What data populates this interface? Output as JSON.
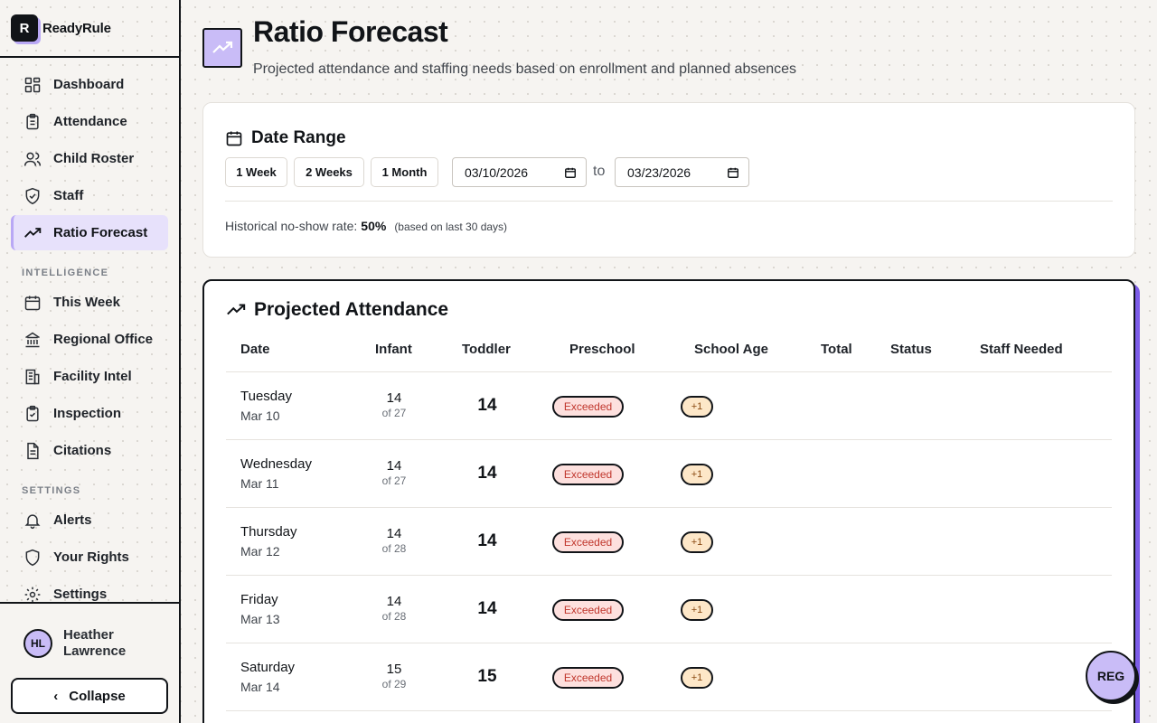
{
  "brand": {
    "logo_letter": "R",
    "name": "ReadyRule"
  },
  "sidebar": {
    "items": [
      {
        "label": "Dashboard",
        "icon": "dashboard-icon"
      },
      {
        "label": "Attendance",
        "icon": "clipboard-icon"
      },
      {
        "label": "Child Roster",
        "icon": "users-icon"
      },
      {
        "label": "Staff",
        "icon": "shield-check-icon"
      },
      {
        "label": "Ratio Forecast",
        "icon": "trending-up-icon",
        "active": true
      }
    ],
    "section_intelligence": "INTELLIGENCE",
    "intelligence_items": [
      {
        "label": "This Week",
        "icon": "calendar-icon"
      },
      {
        "label": "Regional Office",
        "icon": "building-columns-icon"
      },
      {
        "label": "Facility Intel",
        "icon": "building-icon"
      },
      {
        "label": "Inspection",
        "icon": "clipboard-check-icon"
      },
      {
        "label": "Citations",
        "icon": "file-text-icon"
      }
    ],
    "section_settings": "SETTINGS",
    "settings_items": [
      {
        "label": "Alerts",
        "icon": "bell-icon"
      },
      {
        "label": "Your Rights",
        "icon": "shield-icon"
      },
      {
        "label": "Settings",
        "icon": "gear-icon"
      }
    ],
    "user": {
      "initials": "HL",
      "name": "Heather Lawrence"
    },
    "collapse_label": "Collapse"
  },
  "header": {
    "title": "Ratio Forecast",
    "subtitle": "Projected attendance and staffing needs based on enrollment and planned absences"
  },
  "date_range": {
    "title": "Date Range",
    "presets": [
      "1 Week",
      "2 Weeks",
      "1 Month"
    ],
    "start": "03/10/2026",
    "to_label": "to",
    "end": "03/23/2026",
    "noshow_label": "Historical no-show rate:",
    "noshow_value": "50%",
    "noshow_note": "(based on last 30 days)"
  },
  "attendance": {
    "title": "Projected Attendance",
    "columns": [
      "Date",
      "Infant",
      "Toddler",
      "Preschool",
      "School Age",
      "Total",
      "Status",
      "Staff Needed"
    ],
    "rows": [
      {
        "day": "Tuesday",
        "date": "Mar 10",
        "infant": "14",
        "infant_of": "of 27",
        "toddler": "14",
        "preschool_badge": "Exceeded",
        "school_age_badge": "+1"
      },
      {
        "day": "Wednesday",
        "date": "Mar 11",
        "infant": "14",
        "infant_of": "of 27",
        "toddler": "14",
        "preschool_badge": "Exceeded",
        "school_age_badge": "+1"
      },
      {
        "day": "Thursday",
        "date": "Mar 12",
        "infant": "14",
        "infant_of": "of 28",
        "toddler": "14",
        "preschool_badge": "Exceeded",
        "school_age_badge": "+1"
      },
      {
        "day": "Friday",
        "date": "Mar 13",
        "infant": "14",
        "infant_of": "of 28",
        "toddler": "14",
        "preschool_badge": "Exceeded",
        "school_age_badge": "+1"
      },
      {
        "day": "Saturday",
        "date": "Mar 14",
        "infant": "15",
        "infant_of": "of 29",
        "toddler": "15",
        "preschool_badge": "Exceeded",
        "school_age_badge": "+1"
      }
    ]
  },
  "fab": {
    "label": "REG"
  },
  "colors": {
    "accent": "#c9bcf7",
    "accent_dark": "#7c5ce8",
    "danger_bg": "#fde0de",
    "danger_text": "#c0362c",
    "warn_bg": "#fde7c8"
  }
}
